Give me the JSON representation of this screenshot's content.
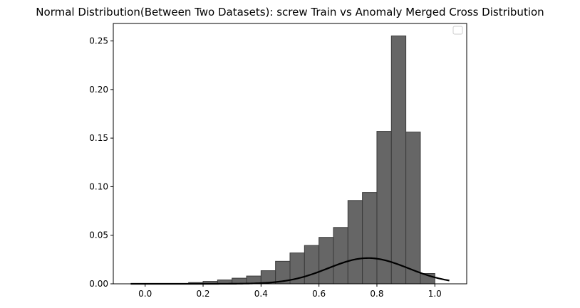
{
  "chart_data": {
    "type": "bar",
    "title": "Normal Distribution(Between Two Datasets): screw Train vs Anomaly Merged Cross Distribution",
    "xlabel": "",
    "ylabel": "",
    "xlim": [
      -0.11,
      1.11
    ],
    "ylim": [
      0,
      0.268
    ],
    "xticks": [
      0.0,
      0.2,
      0.4,
      0.6,
      0.8,
      1.0
    ],
    "xtick_labels": [
      "0.0",
      "0.2",
      "0.4",
      "0.6",
      "0.8",
      "1.0"
    ],
    "yticks": [
      0.0,
      0.05,
      0.1,
      0.15,
      0.2,
      0.25
    ],
    "ytick_labels": [
      "0.00",
      "0.05",
      "0.10",
      "0.15",
      "0.20",
      "0.25"
    ],
    "grid": false,
    "legend": {
      "placement": "top-right",
      "entries": []
    },
    "histogram": {
      "bin_edges": [
        0.15,
        0.2,
        0.25,
        0.3,
        0.35,
        0.4,
        0.45,
        0.5,
        0.55,
        0.6,
        0.65,
        0.7,
        0.75,
        0.8,
        0.85,
        0.9,
        0.95,
        1.0
      ],
      "values": [
        0.0013,
        0.0025,
        0.004,
        0.0058,
        0.008,
        0.0135,
        0.0232,
        0.0318,
        0.0395,
        0.0478,
        0.058,
        0.0858,
        0.094,
        0.157,
        0.2552,
        0.1562,
        0.0106
      ],
      "fill_color": "#666666",
      "edge_color": "#3a3a3a"
    },
    "normal_curve": {
      "mean": 0.77,
      "std": 0.138,
      "peak": 0.0265,
      "x_range": [
        -0.05,
        1.05
      ],
      "color": "#000000"
    }
  }
}
